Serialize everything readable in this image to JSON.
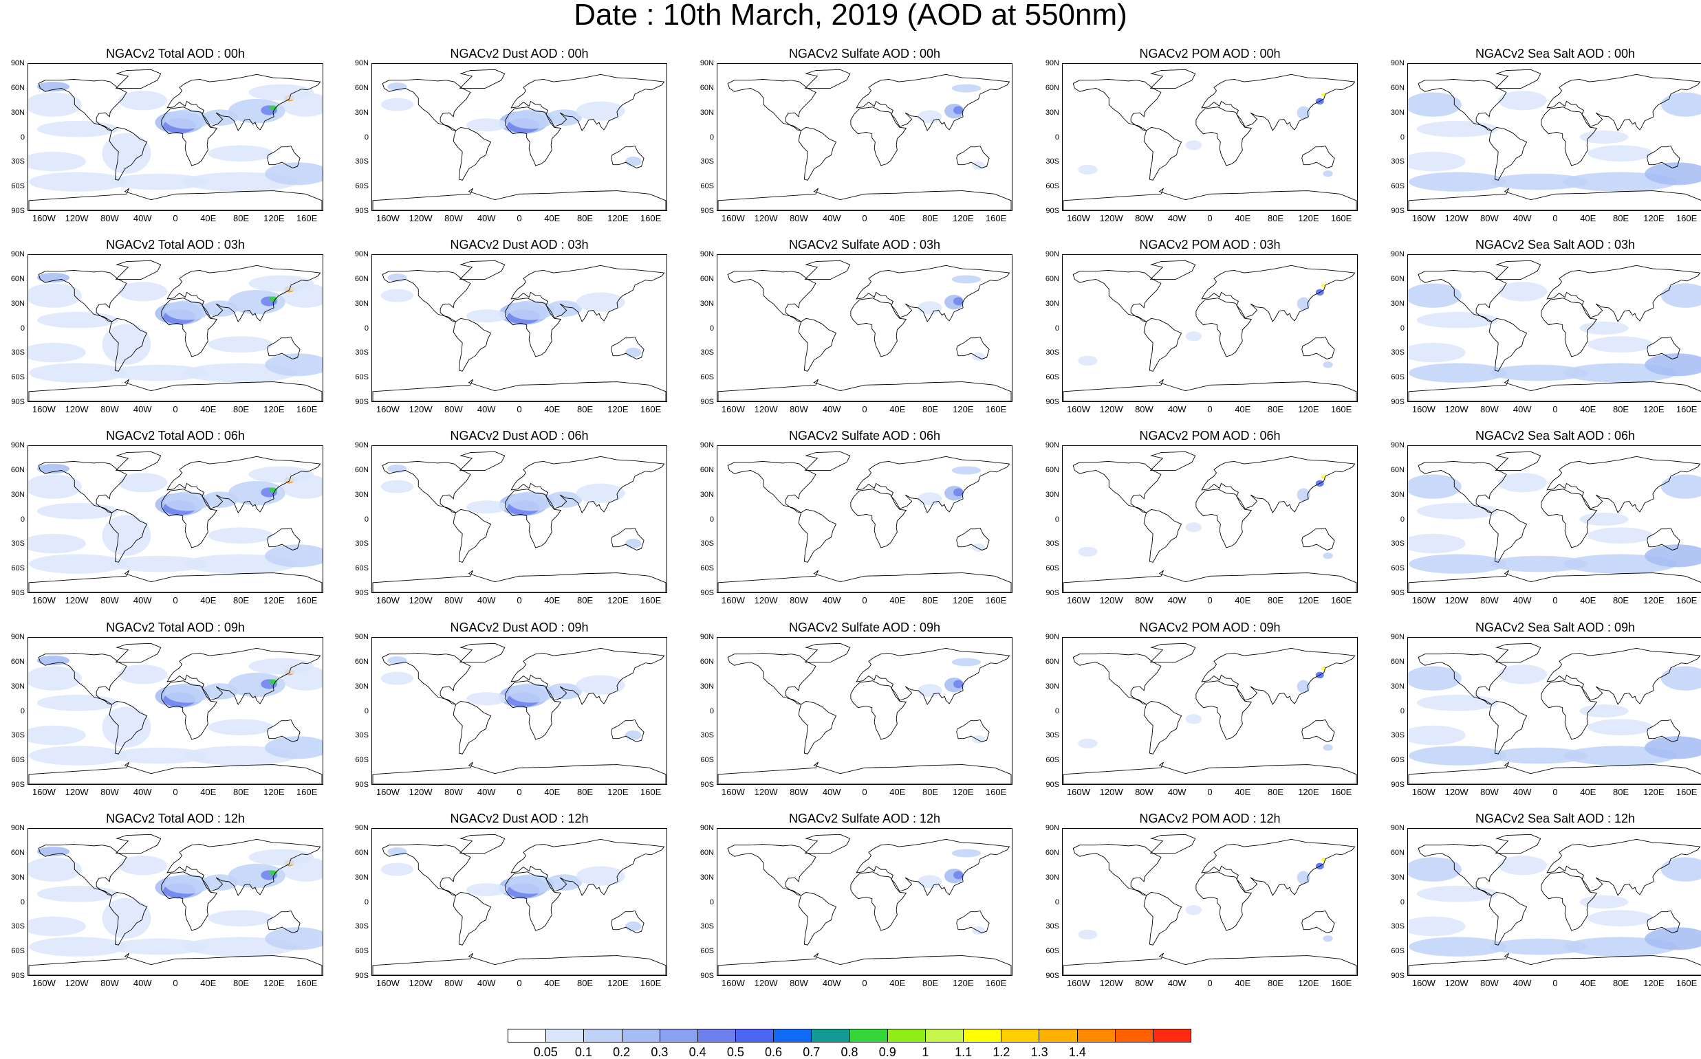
{
  "title": "Date : 10th March, 2019 (AOD at 550nm)",
  "panel_titles": [
    [
      "NGACv2 Total AOD : 00h",
      "NGACv2 Dust AOD : 00h",
      "NGACv2 Sulfate AOD : 00h",
      "NGACv2 POM AOD : 00h",
      "NGACv2 Sea Salt AOD : 00h"
    ],
    [
      "NGACv2 Total AOD : 03h",
      "NGACv2 Dust AOD : 03h",
      "NGACv2 Sulfate AOD : 03h",
      "NGACv2 POM AOD : 03h",
      "NGACv2 Sea Salt AOD : 03h"
    ],
    [
      "NGACv2 Total AOD : 06h",
      "NGACv2 Dust AOD : 06h",
      "NGACv2 Sulfate AOD : 06h",
      "NGACv2 POM AOD : 06h",
      "NGACv2 Sea Salt AOD : 06h"
    ],
    [
      "NGACv2 Total AOD : 09h",
      "NGACv2 Dust AOD : 09h",
      "NGACv2 Sulfate AOD : 09h",
      "NGACv2 POM AOD : 09h",
      "NGACv2 Sea Salt  AOD : 09h"
    ],
    [
      "NGACv2 Total AOD  : 12h",
      "NGACv2 Dust AOD : 12h",
      "NGACv2 Sulfate AOD : 12h",
      "NGACv2 POM  AOD : 12h",
      "NGACv2 Sea Salt AOD : 12h"
    ]
  ],
  "lat_ticks": [
    "90N",
    "60N",
    "30N",
    "0",
    "30S",
    "60S",
    "90S"
  ],
  "lon_ticks": [
    "160W",
    "120W",
    "80W",
    "40W",
    "0",
    "40E",
    "80E",
    "120E",
    "160E"
  ],
  "lat_tick_values": [
    90,
    60,
    30,
    0,
    -30,
    -60,
    -90
  ],
  "lon_tick_values": [
    -160,
    -120,
    -80,
    -40,
    0,
    40,
    80,
    120,
    160
  ],
  "colorbar": {
    "colors": [
      "#ffffff",
      "#dbe6fb",
      "#c0d2f8",
      "#a5bcf5",
      "#8aa2f1",
      "#6d81ee",
      "#4a66f2",
      "#0f6bf5",
      "#139b96",
      "#35d637",
      "#8fee15",
      "#c6f64a",
      "#ffff00",
      "#ffcf00",
      "#ffb000",
      "#ff8a00",
      "#ff6000",
      "#ff2a10"
    ],
    "labels": [
      "0.05",
      "0.1",
      "0.2",
      "0.3",
      "0.4",
      "0.5",
      "0.6",
      "0.7",
      "0.8",
      "0.9",
      "1",
      "1.1",
      "1.2",
      "1.3",
      "1.4"
    ]
  }
}
